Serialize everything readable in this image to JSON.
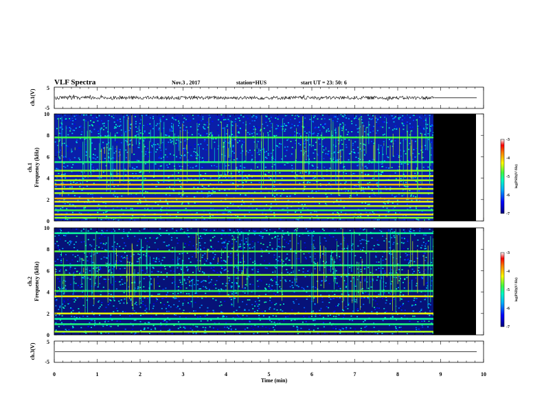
{
  "header": {
    "title": "VLF Spectra",
    "date": "Nov.3 , 2017",
    "station": "station=HUS",
    "start": "start UT = 23: 50: 6"
  },
  "colors": {
    "background": "#ffffff",
    "panel_fill": "#000000",
    "trace": "#000000"
  },
  "chart_data": [
    {
      "type": "line",
      "name": "ch.1 waveform",
      "ylabel": "ch.1(V)",
      "ylim": [
        -5,
        5
      ],
      "yticks": [
        "5",
        "-5"
      ],
      "xlim": [
        0,
        10
      ],
      "data_end_min": 8.85,
      "amplitude_approx": 0.8,
      "baseline_after_end": 0
    },
    {
      "type": "heatmap",
      "name": "ch.1 spectrogram",
      "ylabel": "ch.1",
      "ylabel2": "Frequency (kHz)",
      "ylim": [
        0,
        10
      ],
      "yticks": [
        "0",
        "2",
        "4",
        "6",
        "8",
        "10"
      ],
      "xlim": [
        0,
        10
      ],
      "data_end_min": 8.85,
      "no_data_until_min": 9.85,
      "colorbar": {
        "label": "log(PSD)(V²/Hz)",
        "range": [
          -7,
          -3
        ],
        "ticks": [
          "-3",
          "-4",
          "-5",
          "-6",
          "-7"
        ]
      },
      "bands_khz": [
        {
          "f": 0.3,
          "level": -4.6
        },
        {
          "f": 0.6,
          "level": -4.2
        },
        {
          "f": 1.0,
          "level": -4.8
        },
        {
          "f": 1.4,
          "level": -4.4
        },
        {
          "f": 1.8,
          "level": -4.3
        },
        {
          "f": 2.1,
          "level": -4.0
        },
        {
          "f": 2.6,
          "level": -4.5
        },
        {
          "f": 3.0,
          "level": -4.4
        },
        {
          "f": 3.4,
          "level": -4.0
        },
        {
          "f": 3.8,
          "level": -4.5
        },
        {
          "f": 4.2,
          "level": -4.3
        },
        {
          "f": 4.7,
          "level": -4.6
        },
        {
          "f": 5.5,
          "level": -5.0
        },
        {
          "f": 7.8,
          "level": -4.8
        }
      ]
    },
    {
      "type": "heatmap",
      "name": "ch.2 spectrogram",
      "ylabel": "ch.2",
      "ylabel2": "Frequency (kHz)",
      "ylim": [
        0,
        10
      ],
      "yticks": [
        "0",
        "2",
        "4",
        "6",
        "8",
        "10"
      ],
      "xlim": [
        0,
        10
      ],
      "data_end_min": 8.85,
      "no_data_until_min": 9.85,
      "colorbar": {
        "label": "log(PSD)(V²/Hz)",
        "range": [
          -7,
          -3
        ],
        "ticks": [
          "-3",
          "-4",
          "-5",
          "-6",
          "-7"
        ]
      },
      "bands_khz": [
        {
          "f": 0.3,
          "level": -4.5
        },
        {
          "f": 1.0,
          "level": -5.0
        },
        {
          "f": 1.5,
          "level": -5.1
        },
        {
          "f": 2.0,
          "level": -4.3
        },
        {
          "f": 3.6,
          "level": -4.2
        },
        {
          "f": 4.1,
          "level": -4.9
        },
        {
          "f": 5.6,
          "level": -4.6
        },
        {
          "f": 6.5,
          "level": -5.0
        },
        {
          "f": 7.8,
          "level": -4.7
        },
        {
          "f": 9.5,
          "level": -5.1
        }
      ]
    },
    {
      "type": "line",
      "name": "ch.3 waveform",
      "ylabel": "ch.3(V)",
      "ylim": [
        -5,
        5
      ],
      "yticks": [
        "5",
        "-5"
      ],
      "xlim": [
        0,
        10
      ],
      "value": 0,
      "xlabel": "Time (min)",
      "xticks": [
        "0",
        "1",
        "2",
        "3",
        "4",
        "5",
        "6",
        "7",
        "8",
        "9",
        "10"
      ]
    }
  ]
}
